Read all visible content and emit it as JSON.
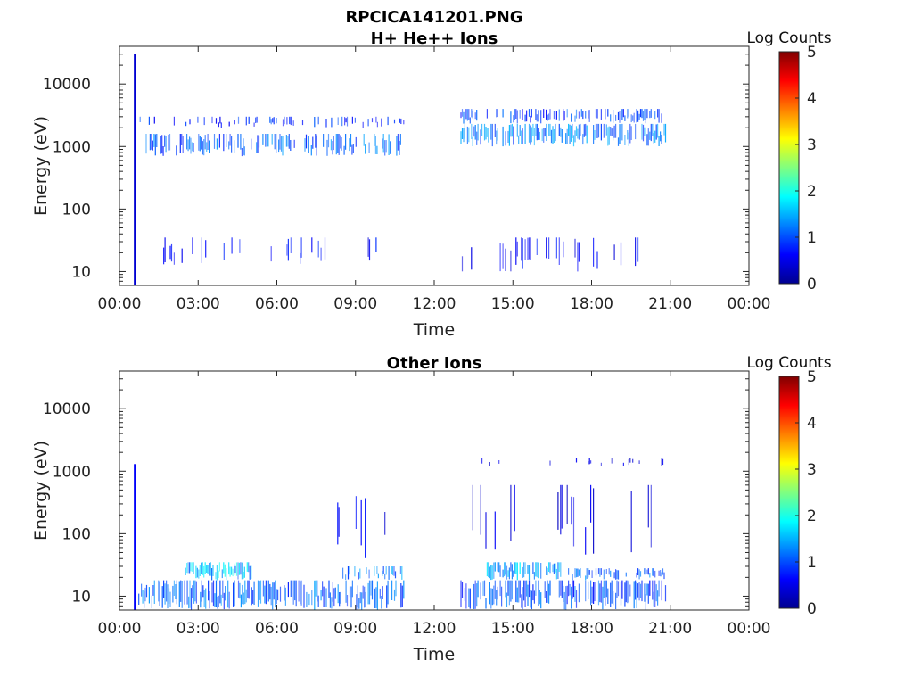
{
  "figure": {
    "title": "RPCICA141201.PNG"
  },
  "chart_data": [
    {
      "type": "heatmap",
      "title": "H+ He++ Ions",
      "xlabel": "Time",
      "ylabel": "Energy (eV)",
      "y_scale": "log",
      "ylim": [
        6,
        40000
      ],
      "xlim": [
        "00:00",
        "24:00"
      ],
      "x_ticks": [
        "00:00",
        "03:00",
        "06:00",
        "09:00",
        "12:00",
        "15:00",
        "18:00",
        "21:00",
        "00:00"
      ],
      "y_ticks": [
        "10",
        "100",
        "1000",
        "10000"
      ],
      "colorbar": {
        "label": "Log Counts",
        "min": 0,
        "max": 5,
        "ticks": [
          "0",
          "1",
          "2",
          "3",
          "4",
          "5"
        ]
      },
      "data_gaps": [
        [
          "10:50",
          "13:00"
        ],
        [
          "20:50",
          "24:00"
        ]
      ],
      "spike": {
        "time": "00:35",
        "energy_range": [
          6,
          30000
        ],
        "log_counts": 0.4
      },
      "bands": [
        {
          "t_start": "01:00",
          "t_end": "10:50",
          "energy_low": 700,
          "energy_high": 1600,
          "log_counts": 1.2,
          "density": 0.55
        },
        {
          "t_start": "00:40",
          "t_end": "10:50",
          "energy_low": 2000,
          "energy_high": 3000,
          "log_counts": 0.9,
          "density": 0.3
        },
        {
          "t_start": "01:40",
          "t_end": "10:50",
          "energy_low": 12,
          "energy_high": 35,
          "log_counts": 0.7,
          "density": 0.15
        },
        {
          "t_start": "13:00",
          "t_end": "20:50",
          "energy_low": 1000,
          "energy_high": 2300,
          "log_counts": 1.3,
          "density": 0.7
        },
        {
          "t_start": "13:00",
          "t_end": "20:50",
          "energy_low": 2300,
          "energy_high": 4000,
          "log_counts": 1.0,
          "density": 0.55
        },
        {
          "t_start": "13:00",
          "t_end": "20:50",
          "energy_low": 10,
          "energy_high": 35,
          "log_counts": 0.7,
          "density": 0.15
        }
      ]
    },
    {
      "type": "heatmap",
      "title": "Other Ions",
      "xlabel": "Time",
      "ylabel": "Energy (eV)",
      "y_scale": "log",
      "ylim": [
        6,
        40000
      ],
      "xlim": [
        "00:00",
        "24:00"
      ],
      "x_ticks": [
        "00:00",
        "03:00",
        "06:00",
        "09:00",
        "12:00",
        "15:00",
        "18:00",
        "21:00",
        "00:00"
      ],
      "y_ticks": [
        "10",
        "100",
        "1000",
        "10000"
      ],
      "colorbar": {
        "label": "Log Counts",
        "min": 0,
        "max": 5,
        "ticks": [
          "0",
          "1",
          "2",
          "3",
          "4",
          "5"
        ]
      },
      "data_gaps": [
        [
          "10:50",
          "13:00"
        ],
        [
          "20:50",
          "24:00"
        ]
      ],
      "spike": {
        "time": "00:35",
        "energy_range": [
          6,
          1300
        ],
        "log_counts": 0.6
      },
      "bands": [
        {
          "t_start": "00:40",
          "t_end": "10:50",
          "energy_low": 6,
          "energy_high": 18,
          "log_counts": 1.2,
          "density": 0.75
        },
        {
          "t_start": "02:30",
          "t_end": "05:00",
          "energy_low": 18,
          "energy_high": 35,
          "log_counts": 1.7,
          "density": 0.85
        },
        {
          "t_start": "08:30",
          "t_end": "10:50",
          "energy_low": 18,
          "energy_high": 30,
          "log_counts": 1.4,
          "density": 0.6
        },
        {
          "t_start": "08:00",
          "t_end": "10:50",
          "energy_low": 40,
          "energy_high": 400,
          "log_counts": 0.6,
          "density": 0.12
        },
        {
          "t_start": "13:00",
          "t_end": "20:50",
          "energy_low": 6,
          "energy_high": 18,
          "log_counts": 1.1,
          "density": 0.75
        },
        {
          "t_start": "14:00",
          "t_end": "17:00",
          "energy_low": 18,
          "energy_high": 35,
          "log_counts": 1.6,
          "density": 0.85
        },
        {
          "t_start": "17:00",
          "t_end": "20:50",
          "energy_low": 18,
          "energy_high": 28,
          "log_counts": 1.2,
          "density": 0.6
        },
        {
          "t_start": "13:00",
          "t_end": "20:50",
          "energy_low": 40,
          "energy_high": 600,
          "log_counts": 0.5,
          "density": 0.1
        },
        {
          "t_start": "13:00",
          "t_end": "20:50",
          "energy_low": 1200,
          "energy_high": 1600,
          "log_counts": 0.5,
          "density": 0.1
        }
      ]
    }
  ]
}
